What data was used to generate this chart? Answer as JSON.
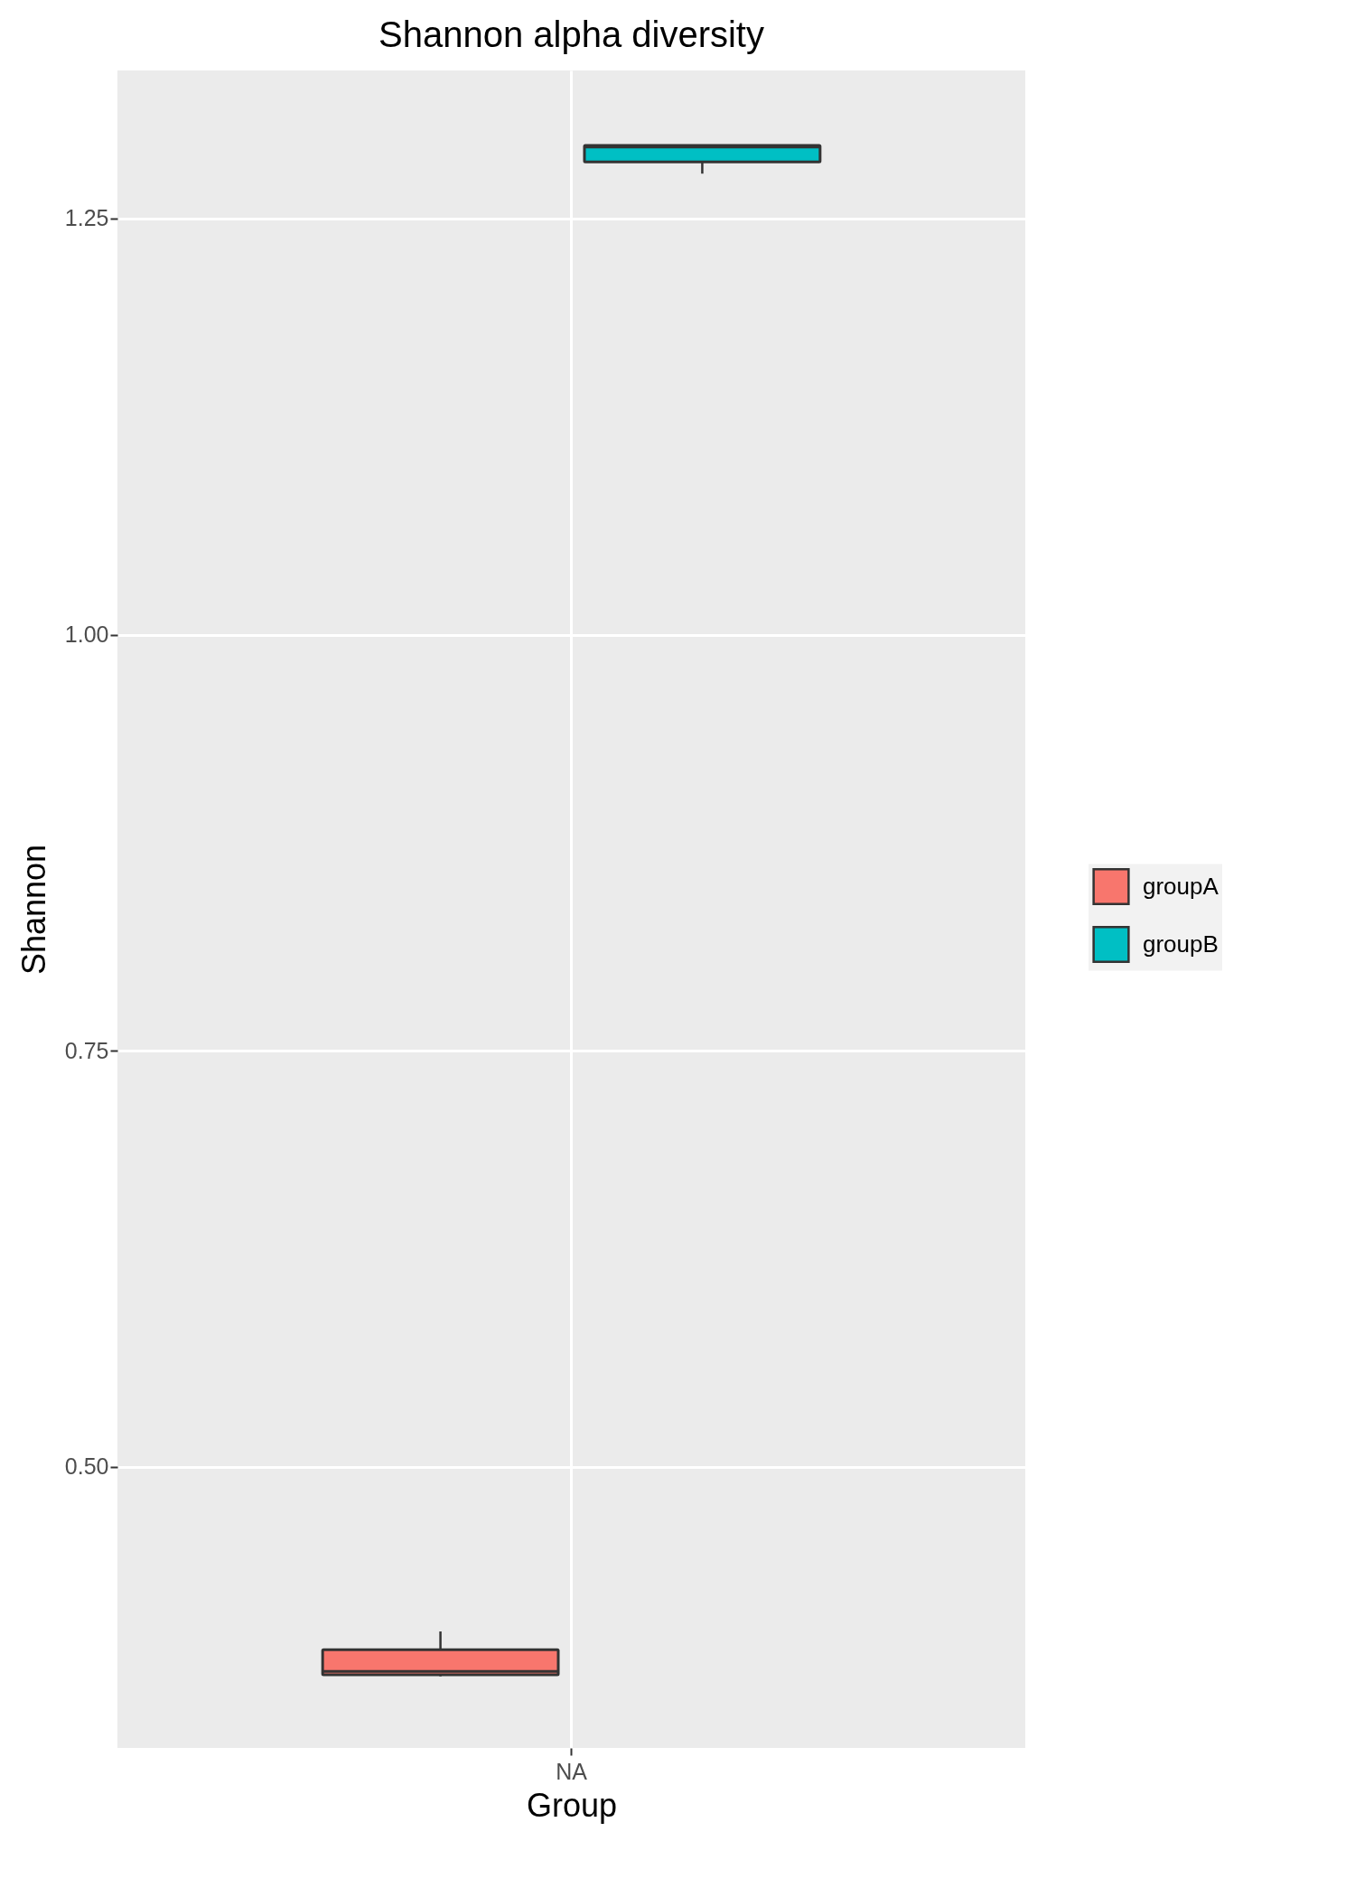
{
  "chart_data": {
    "type": "box",
    "title": "Shannon alpha diversity",
    "xlabel": "Group",
    "ylabel": "Shannon",
    "categories": [
      "NA"
    ],
    "series": [
      {
        "name": "groupA",
        "color": "#f8766d",
        "boxes": [
          {
            "low": 0.374,
            "q1": 0.375,
            "median": 0.377,
            "q3": 0.39,
            "high": 0.401
          }
        ]
      },
      {
        "name": "groupB",
        "color": "#00bfc4",
        "boxes": [
          {
            "low": 1.277,
            "q1": 1.284,
            "median": 1.293,
            "q3": 1.294,
            "high": 1.294
          }
        ]
      }
    ],
    "ylim": [
      0.331,
      1.339
    ],
    "yticks": [
      {
        "value": 0.5,
        "label": "0.50"
      },
      {
        "value": 0.75,
        "label": "0.75"
      },
      {
        "value": 1,
        "label": "1.00"
      },
      {
        "value": 1.25,
        "label": "1.25"
      }
    ],
    "grid": true,
    "legend": "right"
  }
}
